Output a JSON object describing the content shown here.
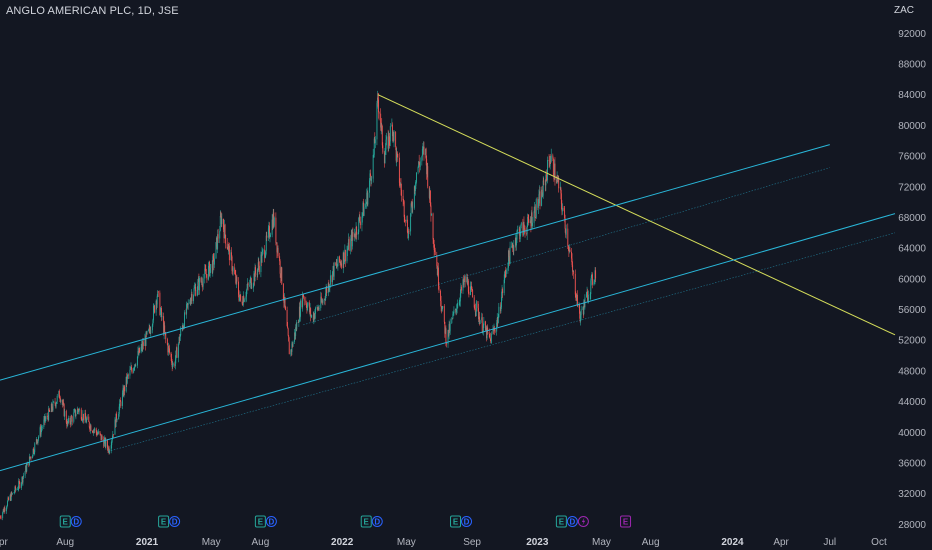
{
  "header": {
    "symbol_title": "ANGLO AMERICAN PLC, 1D, JSE",
    "currency": "ZAC"
  },
  "colors": {
    "background": "#131722",
    "up_candle": "#26a69a",
    "down_candle": "#ef5350",
    "channel_line": "#29b6d8",
    "trend_line": "#d4dc5a",
    "earnings_badge": "#26a69a",
    "dividend_badge": "#2962ff",
    "split_badge": "#9c27b0",
    "axis_text": "#b2b5be"
  },
  "chart_data": {
    "type": "candlestick",
    "title": "ANGLO AMERICAN PLC, 1D, JSE",
    "currency": "ZAC",
    "y_axis": {
      "range": [
        27000,
        94000
      ],
      "ticks": [
        28000,
        32000,
        36000,
        40000,
        44000,
        48000,
        52000,
        56000,
        60000,
        64000,
        68000,
        72000,
        76000,
        80000,
        84000,
        88000,
        92000
      ],
      "tick_labels": [
        "28000",
        "32000",
        "36000",
        "40000",
        "44000",
        "48000",
        "52000",
        "56000",
        "60000",
        "64000",
        "68000",
        "72000",
        "76000",
        "80000",
        "84000",
        "88000",
        "92000"
      ]
    },
    "x_axis": {
      "range": [
        "2020-04-01",
        "2024-10-31"
      ],
      "ticks": [
        {
          "date": "2020-04-01",
          "label": "Apr",
          "bold": false
        },
        {
          "date": "2020-08-01",
          "label": "Aug",
          "bold": false
        },
        {
          "date": "2021-01-01",
          "label": "2021",
          "bold": true
        },
        {
          "date": "2021-05-01",
          "label": "May",
          "bold": false
        },
        {
          "date": "2021-08-01",
          "label": "Aug",
          "bold": false
        },
        {
          "date": "2022-01-01",
          "label": "2022",
          "bold": true
        },
        {
          "date": "2022-05-01",
          "label": "May",
          "bold": false
        },
        {
          "date": "2022-09-01",
          "label": "Sep",
          "bold": false
        },
        {
          "date": "2023-01-01",
          "label": "2023",
          "bold": true
        },
        {
          "date": "2023-05-01",
          "label": "May",
          "bold": false
        },
        {
          "date": "2023-08-01",
          "label": "Aug",
          "bold": false
        },
        {
          "date": "2024-01-01",
          "label": "2024",
          "bold": true
        },
        {
          "date": "2024-04-01",
          "label": "Apr",
          "bold": false
        },
        {
          "date": "2024-07-01",
          "label": "Jul",
          "bold": false
        },
        {
          "date": "2024-10-01",
          "label": "Oct",
          "bold": false
        }
      ]
    },
    "price_path": [
      [
        "2020-04-01",
        29000
      ],
      [
        "2020-04-20",
        31500
      ],
      [
        "2020-05-10",
        33500
      ],
      [
        "2020-06-01",
        37500
      ],
      [
        "2020-06-20",
        41000
      ],
      [
        "2020-07-10",
        43500
      ],
      [
        "2020-07-22",
        45000
      ],
      [
        "2020-08-05",
        41000
      ],
      [
        "2020-08-25",
        43000
      ],
      [
        "2020-09-15",
        41000
      ],
      [
        "2020-10-05",
        39500
      ],
      [
        "2020-10-22",
        37800
      ],
      [
        "2020-11-05",
        42000
      ],
      [
        "2020-11-25",
        47000
      ],
      [
        "2020-12-15",
        50000
      ],
      [
        "2021-01-05",
        53000
      ],
      [
        "2021-01-20",
        58000
      ],
      [
        "2021-02-05",
        52000
      ],
      [
        "2021-02-20",
        48500
      ],
      [
        "2021-03-05",
        53000
      ],
      [
        "2021-03-25",
        58000
      ],
      [
        "2021-04-15",
        60000
      ],
      [
        "2021-05-05",
        62000
      ],
      [
        "2021-05-20",
        68000
      ],
      [
        "2021-06-05",
        63000
      ],
      [
        "2021-06-25",
        57000
      ],
      [
        "2021-07-10",
        59000
      ],
      [
        "2021-07-25",
        61000
      ],
      [
        "2021-08-10",
        64000
      ],
      [
        "2021-08-25",
        68000
      ],
      [
        "2021-09-10",
        60000
      ],
      [
        "2021-09-25",
        50000
      ],
      [
        "2021-10-05",
        53000
      ],
      [
        "2021-10-20",
        58000
      ],
      [
        "2021-11-05",
        55000
      ],
      [
        "2021-11-25",
        57000
      ],
      [
        "2021-12-15",
        61000
      ],
      [
        "2022-01-05",
        63000
      ],
      [
        "2022-01-25",
        66000
      ],
      [
        "2022-02-15",
        70000
      ],
      [
        "2022-03-01",
        76000
      ],
      [
        "2022-03-09",
        83500
      ],
      [
        "2022-03-20",
        76000
      ],
      [
        "2022-04-05",
        80000
      ],
      [
        "2022-04-20",
        72000
      ],
      [
        "2022-05-05",
        66000
      ],
      [
        "2022-05-20",
        74000
      ],
      [
        "2022-06-05",
        77000
      ],
      [
        "2022-06-20",
        66000
      ],
      [
        "2022-07-05",
        57000
      ],
      [
        "2022-07-15",
        52000
      ],
      [
        "2022-08-05",
        57000
      ],
      [
        "2022-08-20",
        60000
      ],
      [
        "2022-09-05",
        57000
      ],
      [
        "2022-09-20",
        54000
      ],
      [
        "2022-10-05",
        52000
      ],
      [
        "2022-10-20",
        55000
      ],
      [
        "2022-11-05",
        62000
      ],
      [
        "2022-11-25",
        66000
      ],
      [
        "2022-12-15",
        67000
      ],
      [
        "2023-01-10",
        71000
      ],
      [
        "2023-01-25",
        76000
      ],
      [
        "2023-02-10",
        72000
      ],
      [
        "2023-02-25",
        66000
      ],
      [
        "2023-03-10",
        60000
      ],
      [
        "2023-03-22",
        55000
      ],
      [
        "2023-04-05",
        58000
      ],
      [
        "2023-04-20",
        61000
      ]
    ],
    "drawings": [
      {
        "type": "trend_line",
        "name": "descending-trendline",
        "from": [
          "2022-03-09",
          84000
        ],
        "to": [
          "2024-10-31",
          52700
        ]
      },
      {
        "type": "channel_line",
        "name": "upper-channel-line",
        "from": [
          "2020-04-01",
          46800
        ],
        "to": [
          "2024-07-01",
          77500
        ]
      },
      {
        "type": "channel_line",
        "name": "upper-channel-inner-line",
        "from": [
          "2021-10-20",
          54000
        ],
        "to": [
          "2024-07-01",
          74500
        ],
        "dotted": true
      },
      {
        "type": "channel_line",
        "name": "lower-channel-line",
        "from": [
          "2020-04-01",
          35000
        ],
        "to": [
          "2024-10-31",
          68500
        ]
      },
      {
        "type": "channel_line",
        "name": "lower-channel-inner-line",
        "from": [
          "2020-10-20",
          37500
        ],
        "to": [
          "2024-10-31",
          66000
        ],
        "dotted": true
      }
    ],
    "events": [
      {
        "date": "2020-08-01",
        "badges": [
          "E",
          "D"
        ]
      },
      {
        "date": "2021-02-01",
        "badges": [
          "E",
          "D"
        ]
      },
      {
        "date": "2021-08-01",
        "badges": [
          "E",
          "D"
        ]
      },
      {
        "date": "2022-02-15",
        "badges": [
          "E",
          "D"
        ]
      },
      {
        "date": "2022-08-01",
        "badges": [
          "E",
          "D"
        ]
      },
      {
        "date": "2023-02-15",
        "badges": [
          "E",
          "D",
          "split"
        ]
      },
      {
        "date": "2023-06-15",
        "badges": [
          "E-purple"
        ]
      }
    ]
  }
}
